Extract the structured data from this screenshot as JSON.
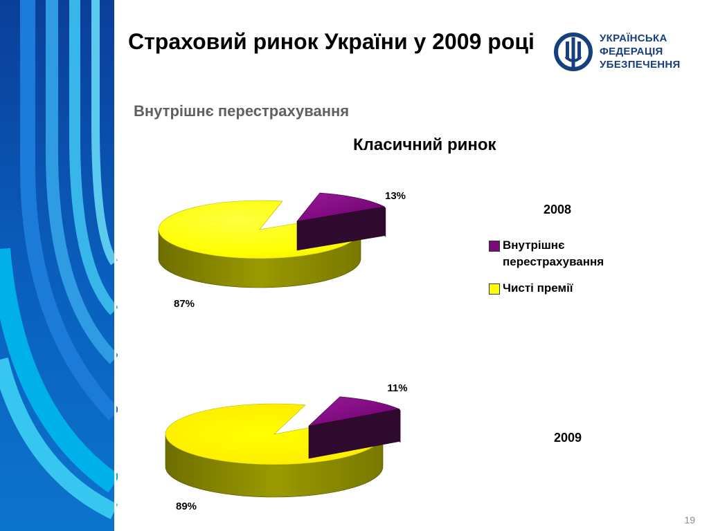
{
  "title": "Страховий ринок України у 2009 році",
  "subtitle": "Внутрішнє перестрахування",
  "logo": {
    "line1": "УКРАЇНСЬКА",
    "line2": "ФЕДЕРАЦІЯ",
    "line3": "УБЕЗПЕЧЕННЯ",
    "color": "#173f7e"
  },
  "page_number": "19",
  "chart_data": {
    "type": "pie",
    "title": "Класичний ринок",
    "legend": {
      "placement": "right",
      "items": [
        {
          "label": "Внутрішнє перестрахування",
          "color": "#7a0a7a"
        },
        {
          "label": "Чисті премії",
          "color": "#ffff00"
        }
      ]
    },
    "charts": [
      {
        "label": "2008",
        "slices": [
          {
            "name": "Внутрішнє перестрахування",
            "value": 13,
            "label": "13%"
          },
          {
            "name": "Чисті премії",
            "value": 87,
            "label": "87%"
          }
        ]
      },
      {
        "label": "2009",
        "slices": [
          {
            "name": "Внутрішнє перестрахування",
            "value": 11,
            "label": "11%"
          },
          {
            "name": "Чисті премії",
            "value": 89,
            "label": "89%"
          }
        ]
      }
    ]
  }
}
